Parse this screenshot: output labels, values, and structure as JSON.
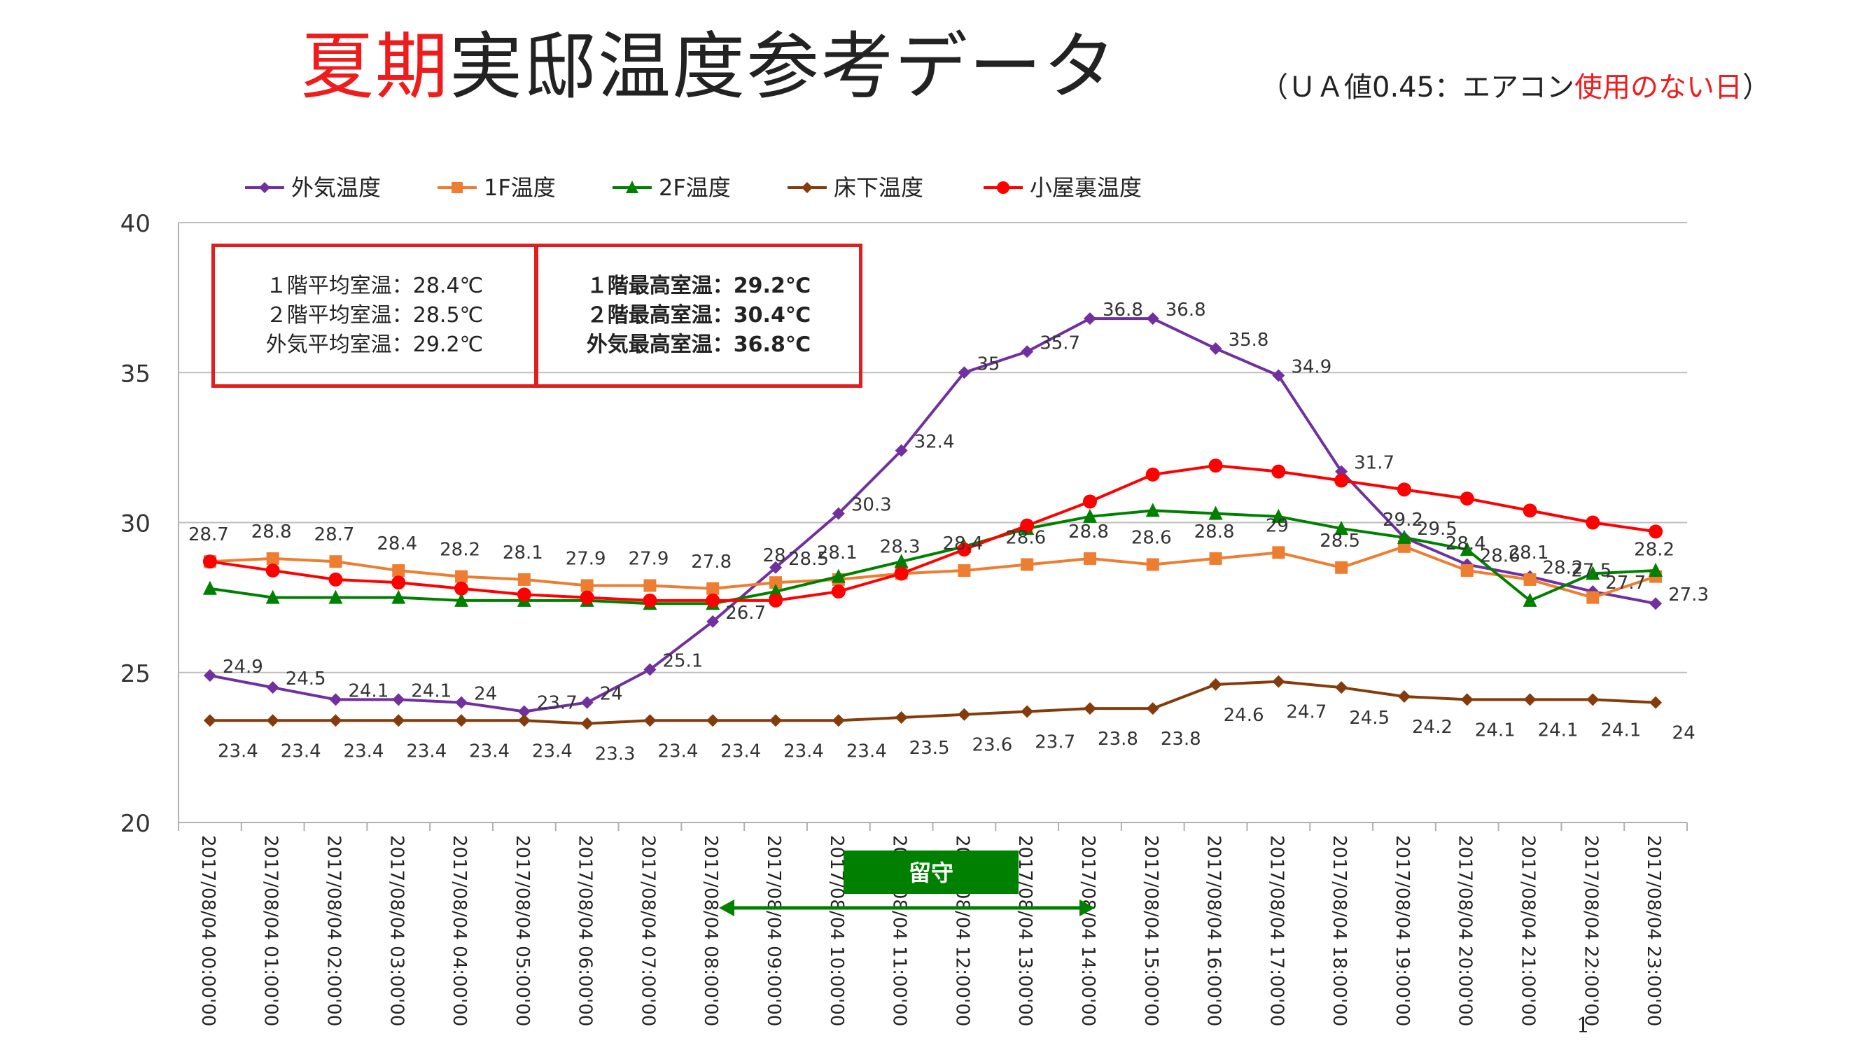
{
  "header": {
    "title_red": "夏期",
    "title_rest": "実邸温度参考データ",
    "subtitle_prefix": "（ＵＡ値0.45：エアコン",
    "subtitle_red": "使用のない日",
    "subtitle_suffix": "）"
  },
  "stats_left": [
    "１階平均室温：28.4℃",
    "２階平均室温：28.5℃",
    "外気平均室温：29.2℃"
  ],
  "stats_right": [
    "１階最高室温：29.2℃",
    "２階最高室温：30.4℃",
    "外気最高室温：36.8℃"
  ],
  "away_label": "留守",
  "page_number": "1",
  "colors": {
    "outdoor": "#7030a0",
    "f1": "#ed7d31",
    "f2": "#008000",
    "underfloor": "#843c0c",
    "attic": "#ff0000",
    "away": "#008000",
    "box": "#e11d1d"
  },
  "chart_data": {
    "type": "line",
    "ylim": [
      20,
      40
    ],
    "yticks": [
      20,
      25,
      30,
      35,
      40
    ],
    "legend_position": "top",
    "grid": true,
    "categories": [
      "2017/08/04 00:00'00",
      "2017/08/04 01:00'00",
      "2017/08/04 02:00'00",
      "2017/08/04 03:00'00",
      "2017/08/04 04:00'00",
      "2017/08/04 05:00'00",
      "2017/08/04 06:00'00",
      "2017/08/04 07:00'00",
      "2017/08/04 08:00'00",
      "2017/08/04 09:00'00",
      "2017/08/04 10:00'00",
      "2017/08/04 11:00'00",
      "2017/08/04 12:00'00",
      "2017/08/04 13:00'00",
      "2017/08/04 14:00'00",
      "2017/08/04 15:00'00",
      "2017/08/04 16:00'00",
      "2017/08/04 17:00'00",
      "2017/08/04 18:00'00",
      "2017/08/04 19:00'00",
      "2017/08/04 20:00'00",
      "2017/08/04 21:00'00",
      "2017/08/04 22:00'00",
      "2017/08/04 23:00'00"
    ],
    "series": [
      {
        "key": "outdoor",
        "name": "外気温度",
        "marker": "diamond",
        "labels": true,
        "values": [
          24.9,
          24.5,
          24.1,
          24.1,
          24,
          23.7,
          24,
          25.1,
          26.7,
          28.5,
          30.3,
          32.4,
          35,
          35.7,
          36.8,
          36.8,
          35.8,
          34.9,
          31.7,
          29.5,
          28.6,
          28.2,
          27.7,
          27.3
        ]
      },
      {
        "key": "f1",
        "name": "1F温度",
        "marker": "square",
        "labels": true,
        "values": [
          28.7,
          28.8,
          28.7,
          28.4,
          28.2,
          28.1,
          27.9,
          27.9,
          27.8,
          28,
          28.1,
          28.3,
          28.4,
          28.6,
          28.8,
          28.6,
          28.8,
          29,
          28.5,
          29.2,
          28.4,
          28.1,
          27.5,
          28.2
        ]
      },
      {
        "key": "f2",
        "name": "2F温度",
        "marker": "triangle",
        "labels": false,
        "values": [
          27.8,
          27.5,
          27.5,
          27.5,
          27.4,
          27.4,
          27.4,
          27.3,
          27.3,
          27.7,
          28.2,
          28.7,
          29.2,
          29.8,
          30.2,
          30.4,
          30.3,
          30.2,
          29.8,
          29.5,
          29.1,
          27.4,
          28.3,
          28.4
        ]
      },
      {
        "key": "underfloor",
        "name": "床下温度",
        "marker": "diamond",
        "labels": true,
        "values": [
          23.4,
          23.4,
          23.4,
          23.4,
          23.4,
          23.4,
          23.3,
          23.4,
          23.4,
          23.4,
          23.4,
          23.5,
          23.6,
          23.7,
          23.8,
          23.8,
          24.6,
          24.7,
          24.5,
          24.2,
          24.1,
          24.1,
          24.1,
          24
        ]
      },
      {
        "key": "attic",
        "name": "小屋裏温度",
        "marker": "circle",
        "labels": false,
        "values": [
          28.7,
          28.4,
          28.1,
          28,
          27.8,
          27.6,
          27.5,
          27.4,
          27.4,
          27.4,
          27.7,
          28.3,
          29.1,
          29.9,
          30.7,
          31.6,
          31.9,
          31.7,
          31.4,
          31.1,
          30.8,
          30.4,
          30,
          29.7
        ]
      }
    ]
  }
}
